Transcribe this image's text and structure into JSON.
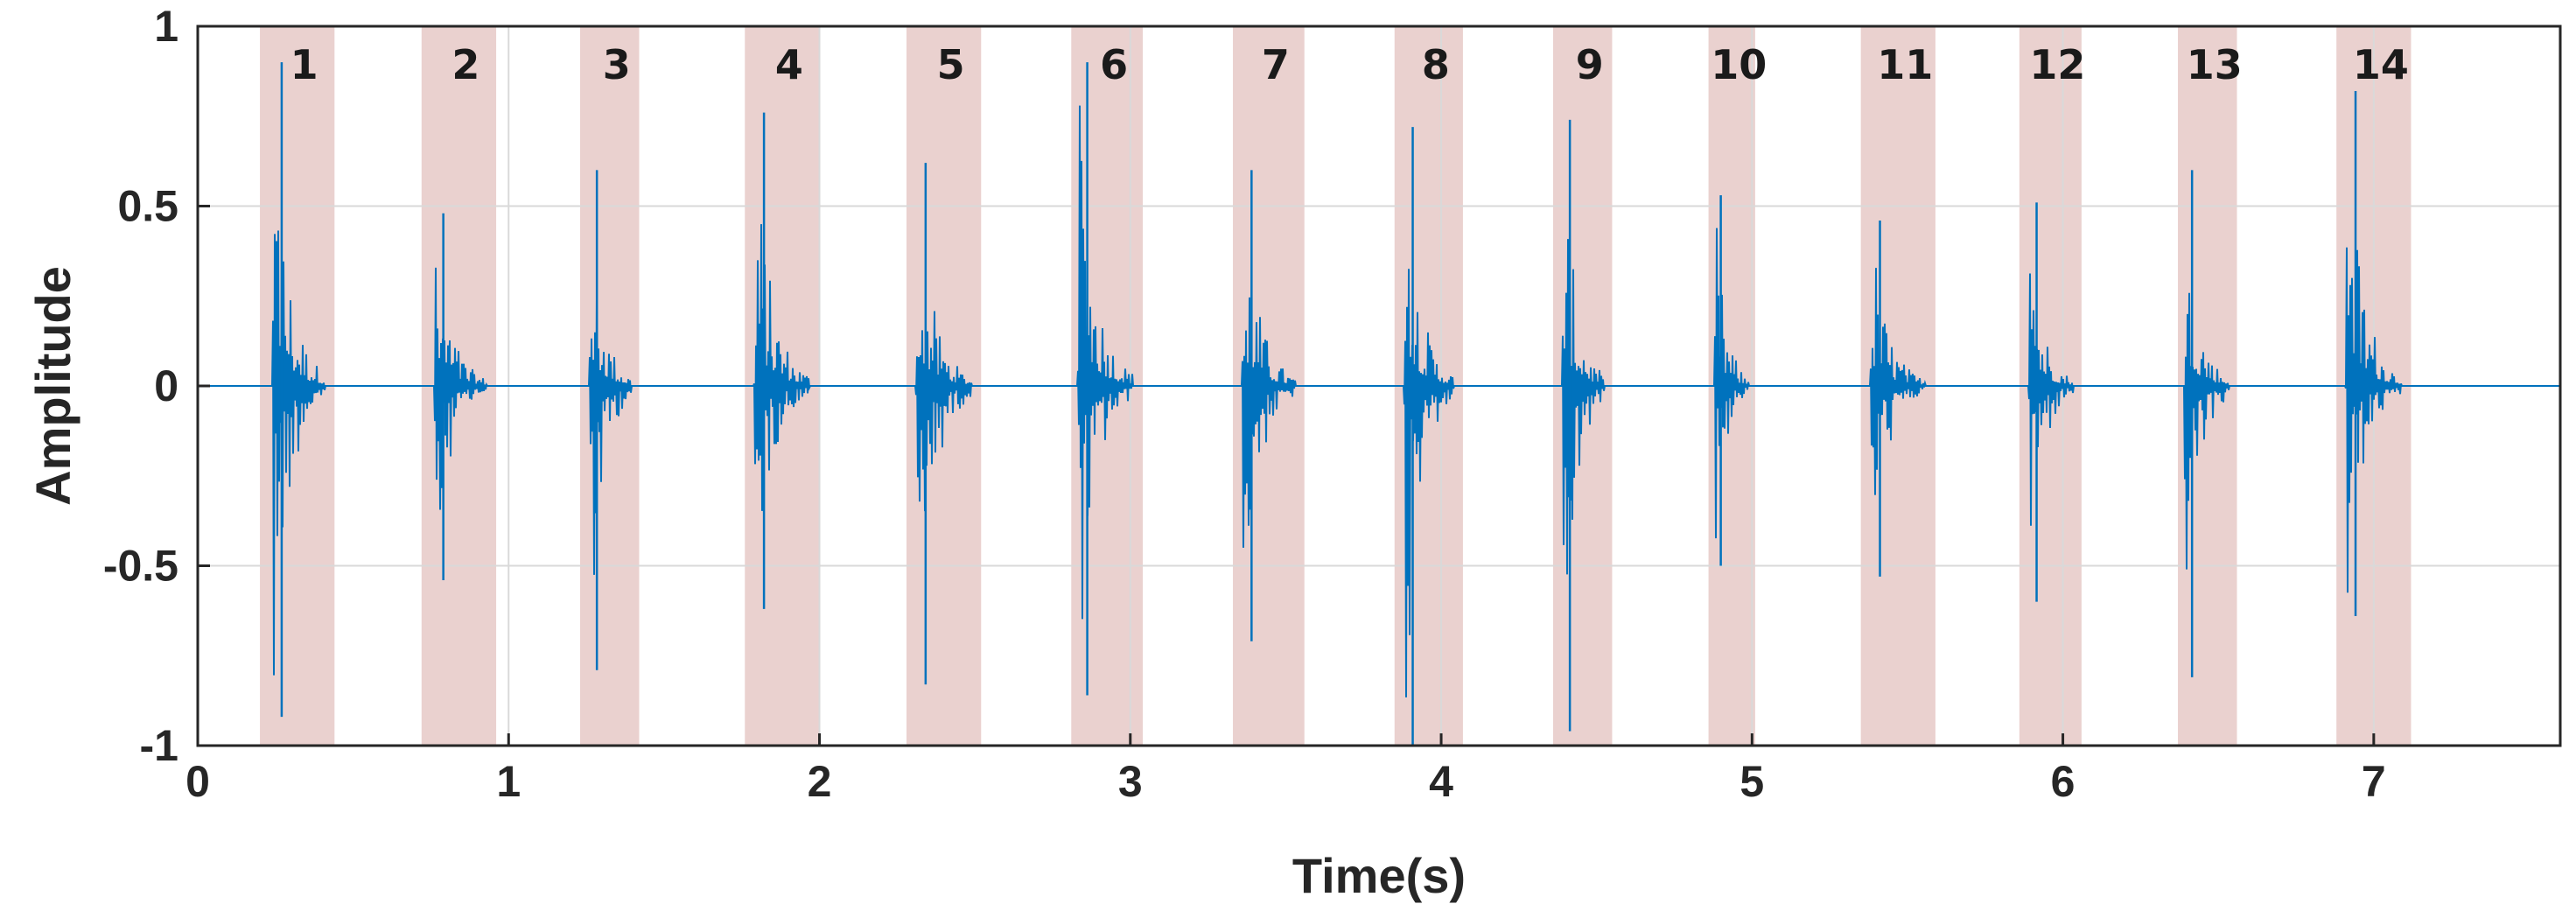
{
  "chart_data": {
    "type": "line",
    "xlabel": "Time(s)",
    "ylabel": "Amplitude",
    "xlim": [
      0,
      7.6
    ],
    "ylim": [
      -1,
      1
    ],
    "xticks": [
      0,
      1,
      2,
      3,
      4,
      5,
      6,
      7
    ],
    "xtick_labels": [
      "0",
      "1",
      "2",
      "3",
      "4",
      "5",
      "6",
      "7"
    ],
    "yticks": [
      1,
      0.5,
      0,
      -0.5,
      -1
    ],
    "ytick_labels": [
      "1",
      "0.5",
      "0",
      "-0.5",
      "-1"
    ],
    "grid": true,
    "series_color": "#0072BD",
    "highlight_color": "#EAD1CF",
    "segments": [
      {
        "label": "1",
        "start": 0.2,
        "end": 0.44,
        "onset": 0.24,
        "peak_pos": 0.9,
        "peak_neg": -0.92
      },
      {
        "label": "2",
        "start": 0.72,
        "end": 0.96,
        "onset": 0.76,
        "peak_pos": 0.48,
        "peak_neg": -0.54
      },
      {
        "label": "3",
        "start": 1.23,
        "end": 1.42,
        "onset": 1.26,
        "peak_pos": 0.6,
        "peak_neg": -0.79
      },
      {
        "label": "4",
        "start": 1.76,
        "end": 2.0,
        "onset": 1.79,
        "peak_pos": 0.76,
        "peak_neg": -0.62
      },
      {
        "label": "5",
        "start": 2.28,
        "end": 2.52,
        "onset": 2.31,
        "peak_pos": 0.62,
        "peak_neg": -0.83
      },
      {
        "label": "6",
        "start": 2.81,
        "end": 3.04,
        "onset": 2.83,
        "peak_pos": 0.9,
        "peak_neg": -0.86
      },
      {
        "label": "7",
        "start": 3.33,
        "end": 3.56,
        "onset": 3.36,
        "peak_pos": 0.6,
        "peak_neg": -0.71
      },
      {
        "label": "8",
        "start": 3.85,
        "end": 4.07,
        "onset": 3.88,
        "peak_pos": 0.72,
        "peak_neg": -1.0
      },
      {
        "label": "9",
        "start": 4.36,
        "end": 4.55,
        "onset": 4.39,
        "peak_pos": 0.74,
        "peak_neg": -0.96
      },
      {
        "label": "10",
        "start": 4.86,
        "end": 5.01,
        "onset": 4.88,
        "peak_pos": 0.53,
        "peak_neg": -0.5
      },
      {
        "label": "11",
        "start": 5.35,
        "end": 5.59,
        "onset": 5.38,
        "peak_pos": 0.46,
        "peak_neg": -0.53
      },
      {
        "label": "12",
        "start": 5.86,
        "end": 6.06,
        "onset": 5.89,
        "peak_pos": 0.51,
        "peak_neg": -0.6
      },
      {
        "label": "13",
        "start": 6.37,
        "end": 6.56,
        "onset": 6.39,
        "peak_pos": 0.6,
        "peak_neg": -0.81
      },
      {
        "label": "14",
        "start": 6.88,
        "end": 7.12,
        "onset": 6.91,
        "peak_pos": 0.82,
        "peak_neg": -0.64
      }
    ]
  }
}
